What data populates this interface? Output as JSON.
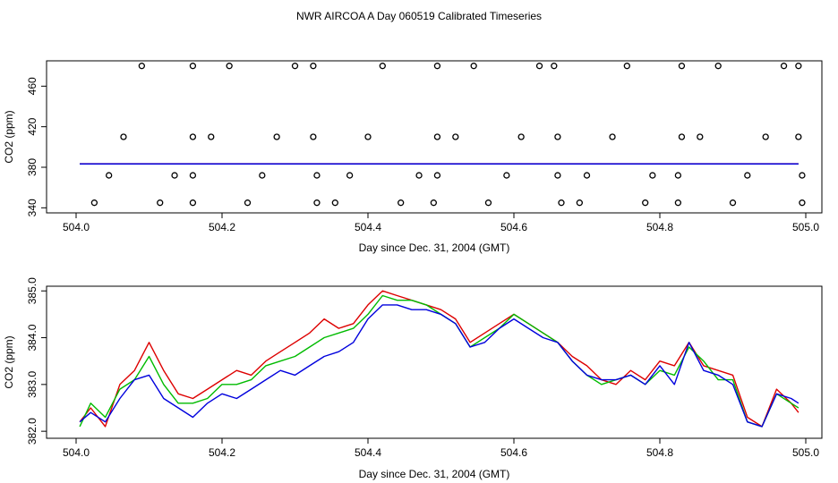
{
  "title": "NWR AIRCOA A  Day 060519  Calibrated Timeseries",
  "colors": {
    "red": "#dd0000",
    "green": "#00bb00",
    "blue": "#0000dd",
    "axis": "#000000"
  },
  "chart_data": [
    {
      "type": "scatter",
      "xlabel": "Day since Dec. 31, 2004 (GMT)",
      "ylabel": "CO2 (ppm)",
      "xlim": [
        504.0,
        505.0
      ],
      "ylim": [
        335,
        485
      ],
      "xticks": [
        "504.0",
        "504.2",
        "504.4",
        "504.6",
        "504.8",
        "505.0"
      ],
      "yticks": [
        "340",
        "380",
        "420",
        "460"
      ],
      "grid": false,
      "flask_points": {
        "y480": [
          504.09,
          504.16,
          504.21,
          504.3,
          504.325,
          504.42,
          504.495,
          504.545,
          504.635,
          504.655,
          504.755,
          504.83,
          504.88,
          504.97,
          504.99
        ],
        "y410": [
          504.065,
          504.16,
          504.185,
          504.275,
          504.325,
          504.4,
          504.495,
          504.52,
          504.61,
          504.66,
          504.735,
          504.83,
          504.855,
          504.945,
          504.99
        ],
        "y372": [
          504.045,
          504.135,
          504.16,
          504.255,
          504.33,
          504.375,
          504.47,
          504.495,
          504.59,
          504.66,
          504.7,
          504.79,
          504.825,
          504.92,
          504.995
        ],
        "y345": [
          504.025,
          504.115,
          504.16,
          504.235,
          504.33,
          504.355,
          504.445,
          504.49,
          504.565,
          504.665,
          504.69,
          504.78,
          504.825,
          504.9,
          504.995
        ]
      },
      "series": [
        {
          "color": "red",
          "level": 383.5
        },
        {
          "color": "green",
          "level": 383.4
        },
        {
          "color": "blue",
          "level": 383.3
        }
      ]
    },
    {
      "type": "line",
      "xlabel": "Day since Dec. 31, 2004 (GMT)",
      "ylabel": "CO2 (ppm)",
      "xlim": [
        504.0,
        505.0
      ],
      "ylim": [
        381.85,
        385.1
      ],
      "xticks": [
        "504.0",
        "504.2",
        "504.4",
        "504.6",
        "504.8",
        "505.0"
      ],
      "yticks": [
        "382.0",
        "383.0",
        "384.0",
        "385.0"
      ],
      "grid": false,
      "x": [
        504.005,
        504.02,
        504.04,
        504.06,
        504.08,
        504.1,
        504.12,
        504.14,
        504.16,
        504.18,
        504.2,
        504.22,
        504.24,
        504.26,
        504.28,
        504.3,
        504.32,
        504.34,
        504.36,
        504.38,
        504.4,
        504.42,
        504.44,
        504.46,
        504.48,
        504.5,
        504.52,
        504.54,
        504.56,
        504.58,
        504.6,
        504.62,
        504.64,
        504.66,
        504.68,
        504.7,
        504.72,
        504.74,
        504.76,
        504.78,
        504.8,
        504.82,
        504.84,
        504.86,
        504.88,
        504.9,
        504.92,
        504.94,
        504.96,
        504.98,
        504.99
      ],
      "series": [
        {
          "color": "red",
          "values": [
            382.2,
            382.5,
            382.1,
            383.0,
            383.3,
            383.9,
            383.3,
            382.8,
            382.7,
            382.9,
            383.1,
            383.3,
            383.2,
            383.5,
            383.7,
            383.9,
            384.1,
            384.4,
            384.2,
            384.3,
            384.7,
            385.0,
            384.9,
            384.8,
            384.7,
            384.6,
            384.4,
            383.9,
            384.1,
            384.3,
            384.5,
            384.3,
            384.1,
            383.9,
            383.6,
            383.4,
            383.1,
            383.0,
            383.3,
            383.1,
            383.5,
            383.4,
            383.9,
            383.4,
            383.3,
            383.2,
            382.3,
            382.1,
            382.9,
            382.6,
            382.4
          ]
        },
        {
          "color": "green",
          "values": [
            382.1,
            382.6,
            382.3,
            382.9,
            383.1,
            383.6,
            383.0,
            382.6,
            382.6,
            382.7,
            383.0,
            383.0,
            383.1,
            383.4,
            383.5,
            383.6,
            383.8,
            384.0,
            384.1,
            384.2,
            384.5,
            384.9,
            384.8,
            384.8,
            384.7,
            384.5,
            384.3,
            383.8,
            384.0,
            384.2,
            384.5,
            384.3,
            384.1,
            383.9,
            383.5,
            383.2,
            383.0,
            383.1,
            383.2,
            383.0,
            383.3,
            383.2,
            383.8,
            383.5,
            383.1,
            383.1,
            382.2,
            382.1,
            382.8,
            382.6,
            382.5
          ]
        },
        {
          "color": "blue",
          "values": [
            382.2,
            382.4,
            382.2,
            382.7,
            383.1,
            383.2,
            382.7,
            382.5,
            382.3,
            382.6,
            382.8,
            382.7,
            382.9,
            383.1,
            383.3,
            383.2,
            383.4,
            383.6,
            383.7,
            383.9,
            384.4,
            384.7,
            384.7,
            384.6,
            384.6,
            384.5,
            384.3,
            383.8,
            383.9,
            384.2,
            384.4,
            384.2,
            384.0,
            383.9,
            383.5,
            383.2,
            383.1,
            383.1,
            383.2,
            383.0,
            383.4,
            383.0,
            383.9,
            383.3,
            383.2,
            383.0,
            382.2,
            382.1,
            382.8,
            382.7,
            382.6
          ]
        }
      ]
    }
  ]
}
